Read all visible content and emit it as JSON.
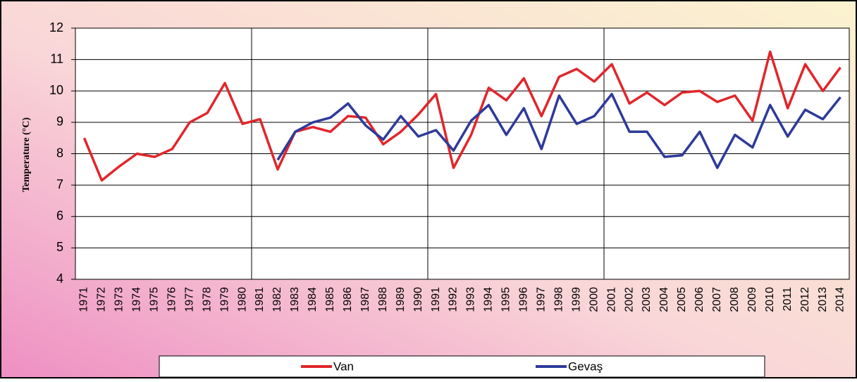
{
  "chart_data": {
    "type": "line",
    "y_label": "Temperature (°C)",
    "categories": [
      "1971",
      "1972",
      "1973",
      "1974",
      "1975",
      "1976",
      "1977",
      "1978",
      "1979",
      "1980",
      "1981",
      "1982",
      "1983",
      "1984",
      "1985",
      "1986",
      "1987",
      "1988",
      "1989",
      "1990",
      "1991",
      "1992",
      "1993",
      "1994",
      "1995",
      "1996",
      "1997",
      "1998",
      "1999",
      "2000",
      "2001",
      "2002",
      "2003",
      "2004",
      "2005",
      "2006",
      "2007",
      "2008",
      "2009",
      "2010",
      "2011",
      "2012",
      "2013",
      "2014"
    ],
    "series": [
      {
        "name": "Van",
        "color": "#e0262b",
        "values": [
          8.5,
          7.15,
          7.6,
          8.0,
          7.9,
          8.15,
          9.0,
          9.3,
          10.25,
          8.95,
          9.1,
          7.5,
          8.7,
          8.85,
          8.7,
          9.2,
          9.15,
          8.3,
          8.7,
          9.25,
          9.9,
          7.55,
          8.6,
          10.1,
          9.7,
          10.4,
          9.2,
          10.45,
          10.7,
          10.3,
          10.85,
          9.6,
          9.95,
          9.55,
          9.95,
          10.0,
          9.65,
          9.85,
          9.05,
          11.25,
          9.45,
          10.85,
          10.0,
          10.75
        ]
      },
      {
        "name": "Gevaş",
        "color": "#2e3a9a",
        "values": [
          null,
          null,
          null,
          null,
          null,
          null,
          null,
          null,
          null,
          null,
          null,
          7.8,
          8.7,
          9.0,
          9.15,
          9.6,
          8.9,
          8.45,
          9.2,
          8.55,
          8.75,
          8.1,
          9.05,
          9.55,
          8.6,
          9.45,
          8.15,
          9.85,
          8.95,
          9.2,
          9.9,
          8.7,
          8.7,
          7.9,
          7.95,
          8.7,
          7.55,
          8.6,
          8.2,
          9.55,
          8.55,
          9.4,
          9.1,
          9.8
        ]
      }
    ],
    "ylim": [
      4,
      12
    ],
    "yticks": [
      4,
      5,
      6,
      7,
      8,
      9,
      10,
      11,
      12
    ],
    "grid": true
  }
}
